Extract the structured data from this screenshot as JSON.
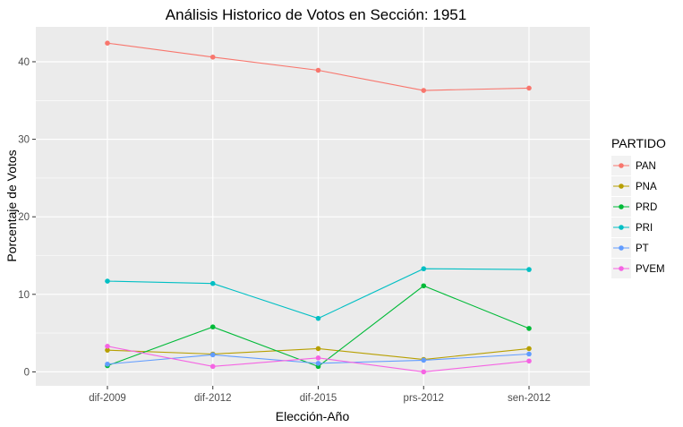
{
  "chart_data": {
    "type": "line",
    "title": "Análisis Historico de Votos en Sección: 1951",
    "xlabel": "Elección-Año",
    "ylabel": "Porcentaje de Votos",
    "categories": [
      "dif-2009",
      "dif-2012",
      "dif-2015",
      "prs-2012",
      "sen-2012"
    ],
    "ylim": [
      -1.8,
      44.5
    ],
    "yticks": [
      0,
      10,
      20,
      30,
      40
    ],
    "grid": true,
    "legend": {
      "title": "PARTIDO",
      "position": "right"
    },
    "series": [
      {
        "name": "PAN",
        "color": "#F8766D",
        "values": [
          42.4,
          40.6,
          38.9,
          36.3,
          36.6
        ]
      },
      {
        "name": "PNA",
        "color": "#B79F00",
        "values": [
          2.8,
          2.3,
          3.0,
          1.6,
          3.0
        ]
      },
      {
        "name": "PRD",
        "color": "#00BA38",
        "values": [
          0.8,
          5.8,
          0.7,
          11.1,
          5.6
        ]
      },
      {
        "name": "PRI",
        "color": "#00BFC4",
        "values": [
          11.7,
          11.4,
          6.9,
          13.3,
          13.2
        ]
      },
      {
        "name": "PT",
        "color": "#619CFF",
        "values": [
          1.0,
          2.2,
          1.1,
          1.5,
          2.3
        ]
      },
      {
        "name": "PVEM",
        "color": "#F564E3",
        "values": [
          3.3,
          0.7,
          1.8,
          0.0,
          1.4
        ]
      }
    ]
  }
}
